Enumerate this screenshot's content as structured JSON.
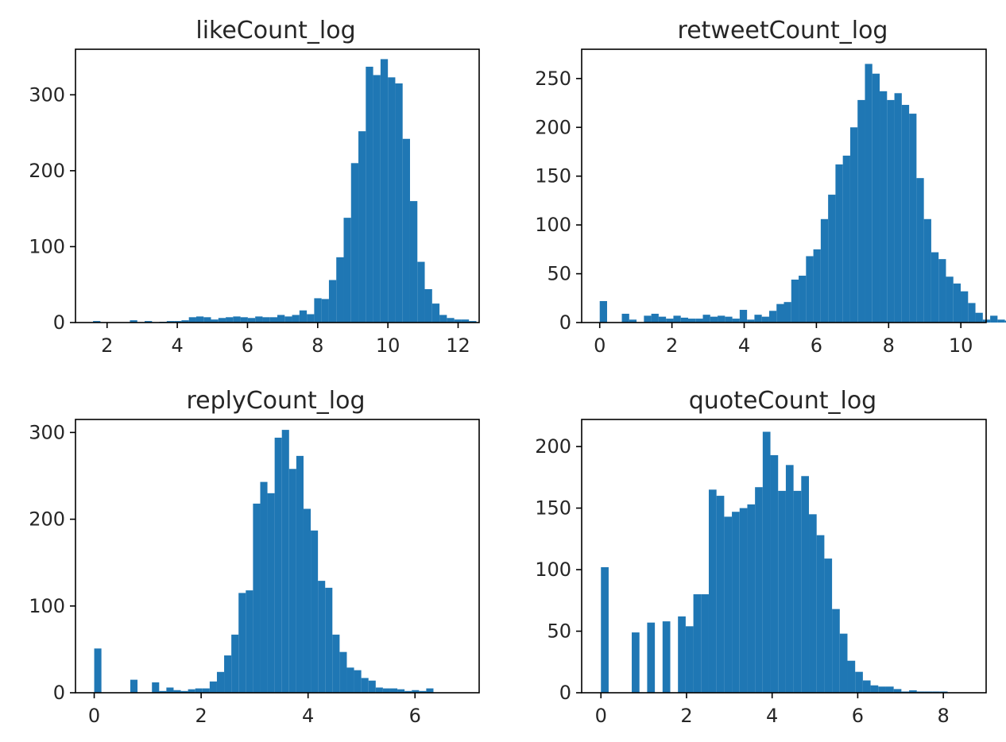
{
  "chart_data": [
    {
      "type": "bar",
      "title": "likeCount_log",
      "xlim": [
        1.1,
        12.6
      ],
      "ylim": [
        0,
        360
      ],
      "xticks": [
        2,
        4,
        6,
        8,
        10,
        12
      ],
      "yticks": [
        0,
        100,
        200,
        300
      ],
      "bin_start": 1.6,
      "bin_width": 0.21,
      "values": [
        2,
        0,
        0,
        0,
        0,
        3,
        0,
        2,
        0,
        1,
        2,
        2,
        3,
        7,
        8,
        7,
        4,
        6,
        7,
        8,
        7,
        6,
        8,
        7,
        7,
        10,
        8,
        10,
        16,
        11,
        32,
        31,
        56,
        86,
        138,
        210,
        252,
        337,
        326,
        347,
        323,
        315,
        242,
        160,
        80,
        44,
        25,
        10,
        6,
        4,
        4,
        2
      ]
    },
    {
      "type": "bar",
      "title": "retweetCount_log",
      "xlim": [
        -0.5,
        10.7
      ],
      "ylim": [
        0,
        280
      ],
      "xticks": [
        0,
        2,
        4,
        6,
        8,
        10
      ],
      "yticks": [
        0,
        50,
        100,
        150,
        200,
        250
      ],
      "bin_start": 0,
      "bin_width": 0.204,
      "values": [
        22,
        0,
        0,
        9,
        3,
        0,
        7,
        9,
        6,
        4,
        7,
        5,
        4,
        4,
        8,
        6,
        7,
        6,
        4,
        13,
        3,
        8,
        6,
        12,
        19,
        21,
        44,
        48,
        68,
        75,
        106,
        131,
        162,
        171,
        200,
        228,
        265,
        255,
        237,
        228,
        235,
        223,
        214,
        148,
        106,
        72,
        65,
        47,
        40,
        32,
        20,
        10,
        3,
        7,
        3,
        2,
        2,
        2
      ]
    },
    {
      "type": "bar",
      "title": "replyCount_log",
      "xlim": [
        -0.35,
        7.2
      ],
      "ylim": [
        0,
        315
      ],
      "xticks": [
        0,
        2,
        4,
        6
      ],
      "yticks": [
        0,
        100,
        200,
        300
      ],
      "bin_start": 0,
      "bin_width": 0.135,
      "values": [
        51,
        0,
        0,
        0,
        0,
        15,
        0,
        0,
        12,
        2,
        6,
        3,
        2,
        4,
        5,
        5,
        13,
        24,
        43,
        67,
        115,
        118,
        218,
        243,
        230,
        294,
        303,
        258,
        273,
        212,
        187,
        129,
        121,
        67,
        47,
        29,
        26,
        17,
        14,
        6,
        5,
        5,
        4,
        2,
        3,
        2,
        5
      ]
    },
    {
      "type": "bar",
      "title": "quoteCount_log",
      "xlim": [
        -0.45,
        9.0
      ],
      "ylim": [
        0,
        222
      ],
      "xticks": [
        0,
        2,
        4,
        6,
        8
      ],
      "yticks": [
        0,
        50,
        100,
        150,
        200
      ],
      "bin_start": 0,
      "bin_width": 0.18,
      "values": [
        102,
        0,
        0,
        0,
        49,
        0,
        57,
        0,
        58,
        0,
        62,
        54,
        80,
        80,
        165,
        160,
        143,
        147,
        150,
        153,
        167,
        212,
        193,
        164,
        185,
        164,
        176,
        145,
        128,
        109,
        68,
        48,
        26,
        17,
        10,
        6,
        5,
        5,
        3,
        1,
        2,
        1,
        1,
        1,
        1
      ]
    }
  ]
}
